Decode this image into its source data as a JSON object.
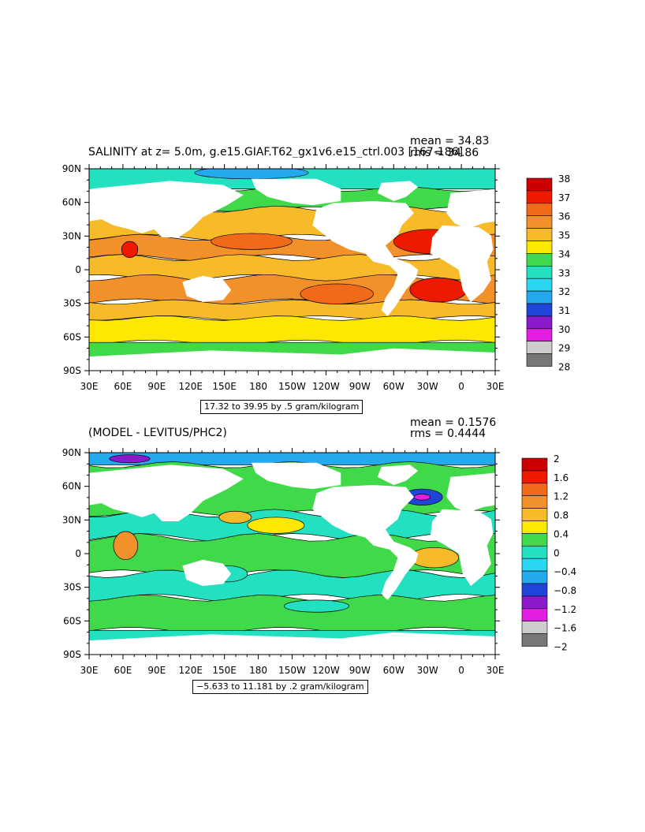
{
  "chart_data": [
    {
      "type": "heatmap",
      "title": "SALINITY at z=    5.0m, g.e15.GIAF.T62_gx1v6.e15_ctrl.003 [167-186]",
      "mean_text": "mean = 34.83",
      "rms_text": "rms = 34.86",
      "x_ticks": [
        "30E",
        "60E",
        "90E",
        "120E",
        "150E",
        "180",
        "150W",
        "120W",
        "90W",
        "60W",
        "30W",
        "0",
        "30E"
      ],
      "y_ticks": [
        "90N",
        "60N",
        "30N",
        "0",
        "30S",
        "60S",
        "90S"
      ],
      "colorbar_labels": [
        "38",
        "37",
        "36",
        "35",
        "34",
        "33",
        "32",
        "31",
        "30",
        "29",
        "28"
      ],
      "colorbar_colors": [
        "#cc0000",
        "#ee1a00",
        "#f06a1a",
        "#f2912a",
        "#f7bb2a",
        "#ffe800",
        "#3fd94a",
        "#22e0c0",
        "#2bd6f0",
        "#24a8ee",
        "#1f45d8",
        "#8a1acc",
        "#e21ee2",
        "#cccccc",
        "#777777"
      ],
      "range_text": "17.32 to 39.95 by .5 gram/kilogram"
    },
    {
      "type": "heatmap",
      "title": "(MODEL - LEVITUS/PHC2)",
      "mean_text": "mean = 0.1576",
      "rms_text": "rms = 0.4444",
      "x_ticks": [
        "30E",
        "60E",
        "90E",
        "120E",
        "150E",
        "180",
        "150W",
        "120W",
        "90W",
        "60W",
        "30W",
        "0",
        "30E"
      ],
      "y_ticks": [
        "90N",
        "60N",
        "30N",
        "0",
        "30S",
        "60S",
        "90S"
      ],
      "colorbar_labels": [
        "2",
        "1.6",
        "1.2",
        "0.8",
        "0.4",
        "0",
        "−0.4",
        "−0.8",
        "−1.2",
        "−1.6",
        "−2"
      ],
      "colorbar_colors": [
        "#cc0000",
        "#ee1a00",
        "#f06a1a",
        "#f2912a",
        "#f7bb2a",
        "#ffe800",
        "#3fd94a",
        "#22e0c0",
        "#2bd6f0",
        "#24a8ee",
        "#1f45d8",
        "#8a1acc",
        "#e21ee2",
        "#cccccc",
        "#777777"
      ],
      "range_text": "−5.633 to 11.181 by .2 gram/kilogram"
    }
  ]
}
